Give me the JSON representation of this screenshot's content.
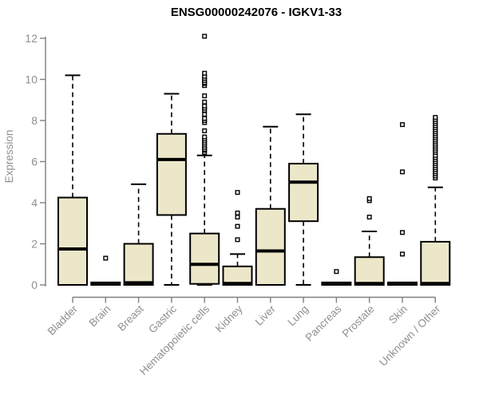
{
  "chart_data": {
    "type": "boxplot",
    "title": "ENSG00000242076 - IGKV1-33",
    "ylabel": "Expression",
    "ylim": [
      0,
      12.2
    ],
    "yticks": [
      0,
      2,
      4,
      6,
      8,
      10,
      12
    ],
    "grid": false,
    "legend": "none",
    "categories": [
      "Bladder",
      "Brain",
      "Breast",
      "Gastric",
      "Hematopoietic cells",
      "Kidney",
      "Liver",
      "Lung",
      "Pancreas",
      "Prostate",
      "Skin",
      "Unknown / Other"
    ],
    "series": [
      {
        "category": "Bladder",
        "low": 0,
        "q1": 0,
        "median": 1.75,
        "q3": 4.25,
        "high": 10.2,
        "outliers": []
      },
      {
        "category": "Brain",
        "low": 0,
        "q1": 0,
        "median": 0.05,
        "q3": 0.12,
        "high": 0.12,
        "outliers": [
          1.3
        ]
      },
      {
        "category": "Breast",
        "low": 0,
        "q1": 0,
        "median": 0.1,
        "q3": 2.0,
        "high": 4.9,
        "outliers": []
      },
      {
        "category": "Gastric",
        "low": 0,
        "q1": 3.4,
        "median": 6.1,
        "q3": 7.35,
        "high": 9.3,
        "outliers": []
      },
      {
        "category": "Hematopoietic cells",
        "low": 0,
        "q1": 0.05,
        "median": 1.0,
        "q3": 2.5,
        "high": 6.3,
        "outliers": [
          6.45,
          6.55,
          6.6,
          6.7,
          6.8,
          6.9,
          7.0,
          7.1,
          7.2,
          7.5,
          7.9,
          8.0,
          8.1,
          8.3,
          8.5,
          8.6,
          8.7,
          8.9,
          9.2,
          9.7,
          9.8,
          9.85,
          9.95,
          10.05,
          10.15,
          10.3,
          12.1
        ]
      },
      {
        "category": "Kidney",
        "low": 0,
        "q1": 0,
        "median": 0.07,
        "q3": 0.9,
        "high": 1.5,
        "outliers": [
          2.2,
          2.85,
          3.3,
          3.5,
          4.5
        ]
      },
      {
        "category": "Liver",
        "low": 0,
        "q1": 0,
        "median": 1.65,
        "q3": 3.7,
        "high": 7.7,
        "outliers": []
      },
      {
        "category": "Lung",
        "low": 0,
        "q1": 3.1,
        "median": 5.0,
        "q3": 5.9,
        "high": 8.3,
        "outliers": []
      },
      {
        "category": "Pancreas",
        "low": 0,
        "q1": 0,
        "median": 0.05,
        "q3": 0.12,
        "high": 0.12,
        "outliers": [
          0.65
        ]
      },
      {
        "category": "Prostate",
        "low": 0,
        "q1": 0,
        "median": 0.07,
        "q3": 1.35,
        "high": 2.6,
        "outliers": [
          3.3,
          4.1,
          4.2
        ]
      },
      {
        "category": "Skin",
        "low": 0,
        "q1": 0,
        "median": 0.05,
        "q3": 0.12,
        "high": 0.12,
        "outliers": [
          1.5,
          2.55,
          5.5,
          7.8
        ]
      },
      {
        "category": "Unknown / Other",
        "low": 0,
        "q1": 0,
        "median": 0.07,
        "q3": 2.1,
        "high": 4.75,
        "outliers": [
          5.2,
          5.3,
          5.4,
          5.5,
          5.6,
          5.7,
          5.8,
          5.9,
          6.0,
          6.1,
          6.2,
          6.3,
          6.45,
          6.55,
          6.65,
          6.75,
          6.85,
          6.95,
          7.05,
          7.15,
          7.25,
          7.35,
          7.45,
          7.55,
          7.65,
          7.75,
          7.85,
          7.95,
          8.05,
          8.15
        ]
      }
    ],
    "colors": {
      "box_fill": "#EDE7CA",
      "box_stroke": "#000000",
      "median": "#000000",
      "axis": "#7f7f7f",
      "tick_label": "#8f8f8f",
      "title": "#000000",
      "outlier_fill": "#ffffff",
      "background": "#ffffff"
    }
  }
}
